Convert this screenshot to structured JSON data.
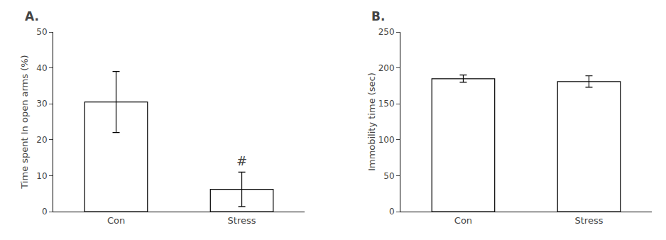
{
  "chart_data": [
    {
      "type": "bar",
      "title": "A.",
      "categories": [
        "Con",
        "Stress"
      ],
      "values": [
        30.5,
        6.2
      ],
      "errors": [
        8.5,
        4.8
      ],
      "ylabel": "Time spent In open arms (%)",
      "ylim": [
        0,
        50
      ],
      "yticks": [
        0,
        10,
        20,
        30,
        40,
        50
      ],
      "color": "white",
      "grid": false,
      "annotations": [
        {
          "text": "#",
          "category": "Stress"
        }
      ]
    },
    {
      "type": "bar",
      "title": "B.",
      "categories": [
        "Con",
        "Stress"
      ],
      "values": [
        185,
        181
      ],
      "errors": [
        5,
        8
      ],
      "ylabel": "Immobility time (sec)",
      "ylim": [
        0,
        250
      ],
      "yticks": [
        0,
        50,
        100,
        150,
        200,
        250
      ],
      "color": "white",
      "grid": false
    }
  ]
}
